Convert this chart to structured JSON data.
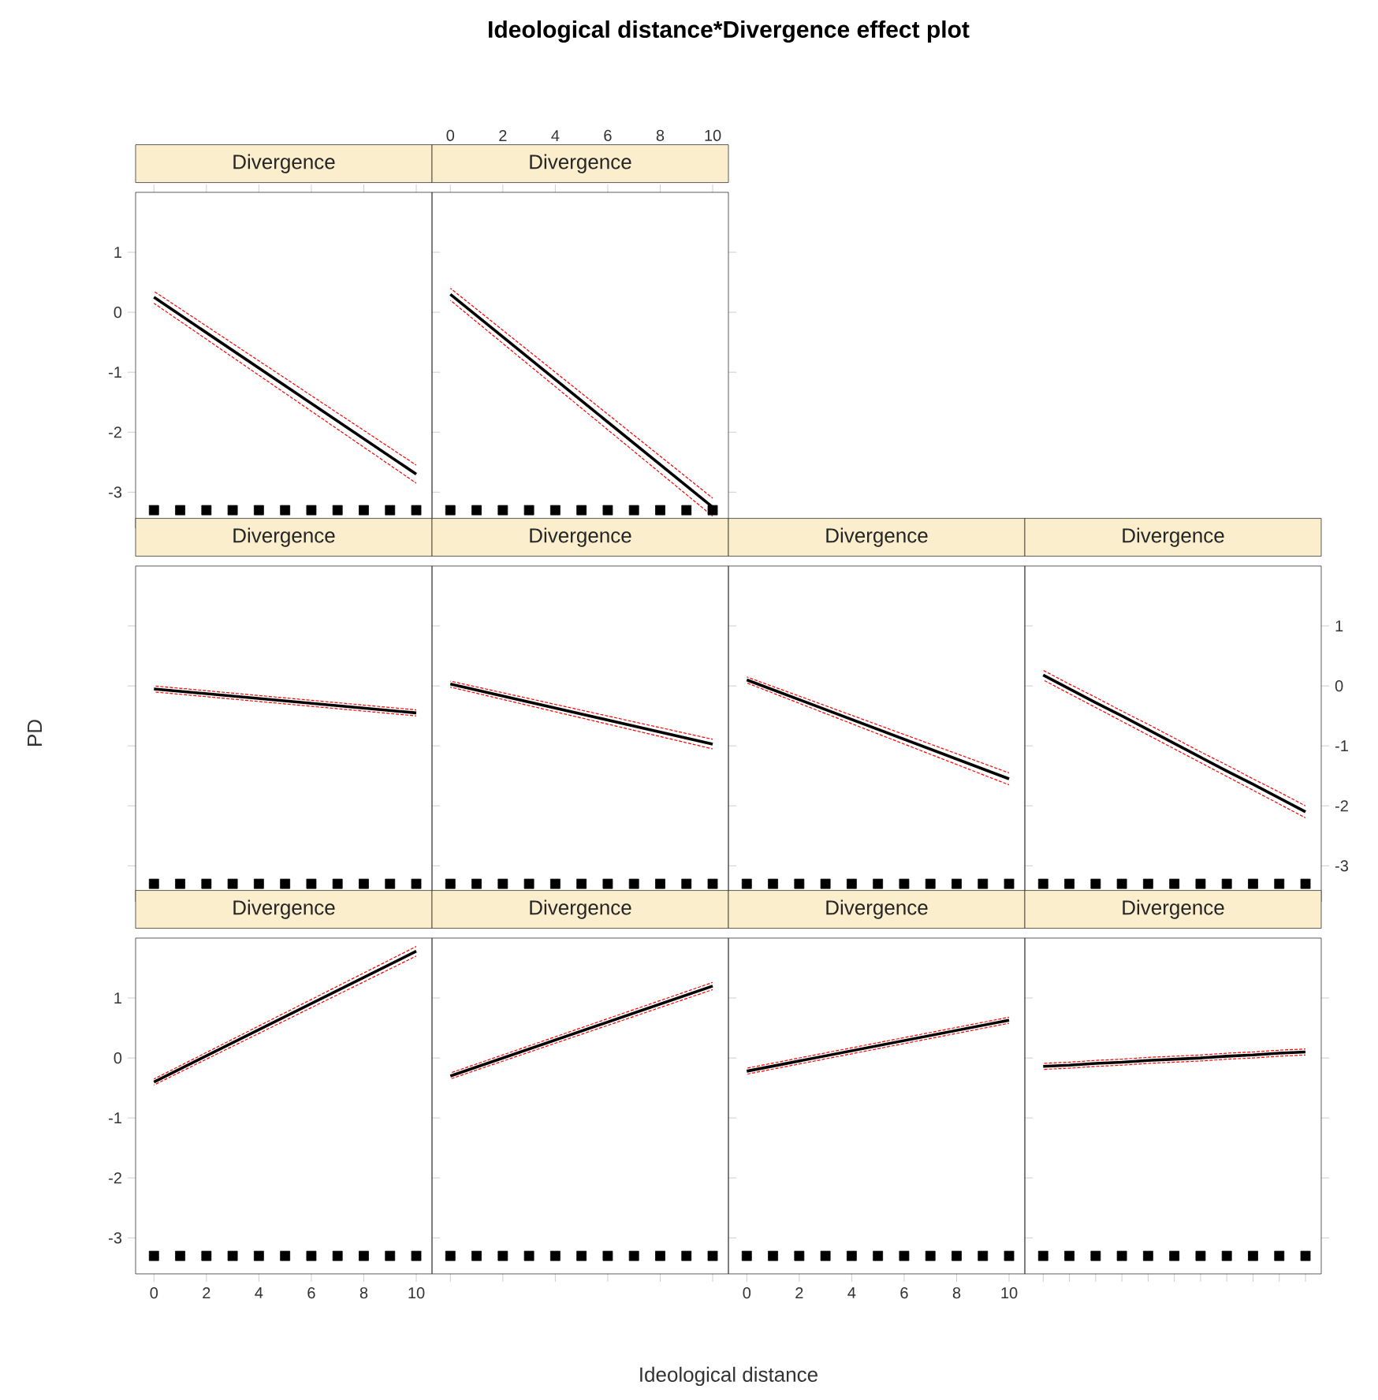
{
  "chart_data": [
    {
      "type": "line",
      "title": "Divergence",
      "xlim": [
        -0.7,
        10.6
      ],
      "ylim": [
        -3.6,
        2.0
      ],
      "xticks": [
        0,
        2,
        4,
        6,
        8,
        10
      ],
      "yticks": [
        -3,
        -2,
        -1,
        0,
        1
      ],
      "tick_labels": "y",
      "series": [
        {
          "color": "#000000",
          "line_style": "solid",
          "x": [
            0,
            10
          ],
          "values": [
            0.25,
            -2.7
          ]
        },
        {
          "color": "#ff0000",
          "line_style": "dashed",
          "x": [
            0,
            10
          ],
          "values": [
            0.15,
            -2.85
          ]
        },
        {
          "color": "#ff0000",
          "line_style": "dashed",
          "x": [
            0,
            10
          ],
          "values": [
            0.35,
            -2.55
          ]
        },
        {
          "type": "scatter",
          "marker": "square",
          "color": "#000000",
          "x": [
            0,
            1,
            2,
            3,
            4,
            5,
            6,
            7,
            8,
            9,
            10
          ],
          "values": [
            -3.3,
            -3.3,
            -3.3,
            -3.3,
            -3.3,
            -3.3,
            -3.3,
            -3.3,
            -3.3,
            -3.3,
            -3.3
          ]
        }
      ]
    },
    {
      "type": "line",
      "title": "Divergence",
      "xlim": [
        -0.7,
        10.6
      ],
      "ylim": [
        -3.6,
        2.0
      ],
      "xticks": [
        0,
        2,
        4,
        6,
        8,
        10
      ],
      "yticks": [
        -3,
        -2,
        -1,
        0,
        1
      ],
      "tick_labels": "x",
      "series": [
        {
          "color": "#000000",
          "line_style": "solid",
          "x": [
            0,
            10
          ],
          "values": [
            0.3,
            -3.25
          ]
        },
        {
          "color": "#ff0000",
          "line_style": "dashed",
          "x": [
            0,
            10
          ],
          "values": [
            0.2,
            -3.4
          ]
        },
        {
          "color": "#ff0000",
          "line_style": "dashed",
          "x": [
            0,
            10
          ],
          "values": [
            0.4,
            -3.1
          ]
        },
        {
          "type": "scatter",
          "marker": "square",
          "color": "#000000",
          "x": [
            0,
            1,
            2,
            3,
            4,
            5,
            6,
            7,
            8,
            9,
            10
          ],
          "values": [
            -3.3,
            -3.3,
            -3.3,
            -3.3,
            -3.3,
            -3.3,
            -3.3,
            -3.3,
            -3.3,
            -3.3,
            -3.3
          ]
        }
      ]
    },
    {
      "type": "line",
      "title": "Divergence",
      "xlim": [
        -0.7,
        10.6
      ],
      "ylim": [
        -3.6,
        2.0
      ],
      "xticks": [
        0,
        2,
        4,
        6,
        8,
        10
      ],
      "yticks": [
        -3,
        -2,
        -1,
        0,
        1
      ],
      "tick_labels": false,
      "series": [
        {
          "color": "#000000",
          "line_style": "solid",
          "x": [
            0,
            10
          ],
          "values": [
            -0.05,
            -0.45
          ]
        },
        {
          "color": "#ff0000",
          "line_style": "dashed",
          "x": [
            0,
            10
          ],
          "values": [
            -0.1,
            -0.5
          ]
        },
        {
          "color": "#ff0000",
          "line_style": "dashed",
          "x": [
            0,
            10
          ],
          "values": [
            0.0,
            -0.4
          ]
        },
        {
          "type": "scatter",
          "marker": "square",
          "color": "#000000",
          "x": [
            0,
            1,
            2,
            3,
            4,
            5,
            6,
            7,
            8,
            9,
            10
          ],
          "values": [
            -3.3,
            -3.3,
            -3.3,
            -3.3,
            -3.3,
            -3.3,
            -3.3,
            -3.3,
            -3.3,
            -3.3,
            -3.3
          ]
        }
      ]
    },
    {
      "type": "line",
      "title": "Divergence",
      "xlim": [
        -0.7,
        10.6
      ],
      "ylim": [
        -3.6,
        2.0
      ],
      "xticks": [
        0,
        2,
        4,
        6,
        8,
        10
      ],
      "yticks": [
        -3,
        -2,
        -1,
        0,
        1
      ],
      "tick_labels": false,
      "series": [
        {
          "color": "#000000",
          "line_style": "solid",
          "x": [
            0,
            10
          ],
          "values": [
            0.03,
            -0.97
          ]
        },
        {
          "color": "#ff0000",
          "line_style": "dashed",
          "x": [
            0,
            10
          ],
          "values": [
            -0.02,
            -1.05
          ]
        },
        {
          "color": "#ff0000",
          "line_style": "dashed",
          "x": [
            0,
            10
          ],
          "values": [
            0.08,
            -0.89
          ]
        },
        {
          "type": "scatter",
          "marker": "square",
          "color": "#000000",
          "x": [
            0,
            1,
            2,
            3,
            4,
            5,
            6,
            7,
            8,
            9,
            10
          ],
          "values": [
            -3.3,
            -3.3,
            -3.3,
            -3.3,
            -3.3,
            -3.3,
            -3.3,
            -3.3,
            -3.3,
            -3.3,
            -3.3
          ]
        }
      ]
    },
    {
      "type": "line",
      "title": "Divergence",
      "xlim": [
        -0.7,
        10.6
      ],
      "ylim": [
        -3.6,
        2.0
      ],
      "xticks": [
        0,
        2,
        4,
        6,
        8,
        10
      ],
      "yticks": [
        -3,
        -2,
        -1,
        0,
        1
      ],
      "tick_labels": false,
      "series": [
        {
          "color": "#000000",
          "line_style": "solid",
          "x": [
            0,
            10
          ],
          "values": [
            0.1,
            -1.55
          ]
        },
        {
          "color": "#ff0000",
          "line_style": "dashed",
          "x": [
            0,
            10
          ],
          "values": [
            0.05,
            -1.65
          ]
        },
        {
          "color": "#ff0000",
          "line_style": "dashed",
          "x": [
            0,
            10
          ],
          "values": [
            0.15,
            -1.45
          ]
        },
        {
          "type": "scatter",
          "marker": "square",
          "color": "#000000",
          "x": [
            0,
            1,
            2,
            3,
            4,
            5,
            6,
            7,
            8,
            9,
            10
          ],
          "values": [
            -3.3,
            -3.3,
            -3.3,
            -3.3,
            -3.3,
            -3.3,
            -3.3,
            -3.3,
            -3.3,
            -3.3,
            -3.3
          ]
        }
      ]
    },
    {
      "type": "line",
      "title": "Divergence",
      "categories": [
        null,
        null,
        null,
        null,
        null,
        null,
        null,
        null,
        null,
        null,
        null
      ],
      "ylim": [
        -3.6,
        2.0
      ],
      "yticks": [
        -3,
        -2,
        -1,
        0,
        1
      ],
      "tick_labels": "y",
      "series": [
        {
          "color": "#000000",
          "line_style": "solid",
          "values": [
            0.18,
            -0.05,
            -0.28,
            -0.5,
            -0.73,
            -0.96,
            -1.19,
            -1.42,
            -1.64,
            -1.87,
            -2.1
          ]
        },
        {
          "color": "#ff0000",
          "line_style": "dashed",
          "values": [
            0.1,
            -0.13,
            -0.36,
            -0.59,
            -0.82,
            -1.05,
            -1.28,
            -1.51,
            -1.74,
            -1.97,
            -2.2
          ]
        },
        {
          "color": "#ff0000",
          "line_style": "dashed",
          "values": [
            0.26,
            0.03,
            -0.19,
            -0.42,
            -0.64,
            -0.87,
            -1.1,
            -1.32,
            -1.55,
            -1.77,
            -2.0
          ]
        },
        {
          "type": "scatter",
          "marker": "square",
          "color": "#000000",
          "values": [
            -3.3,
            -3.3,
            -3.3,
            -3.3,
            -3.3,
            -3.3,
            -3.3,
            -3.3,
            -3.3,
            -3.3,
            -3.3
          ]
        }
      ]
    },
    {
      "type": "line",
      "title": "Divergence",
      "xlim": [
        -0.7,
        10.6
      ],
      "ylim": [
        -3.6,
        2.0
      ],
      "xticks": [
        0,
        2,
        4,
        6,
        8,
        10
      ],
      "yticks": [
        -3,
        -2,
        -1,
        0,
        1
      ],
      "series": [
        {
          "color": "#000000",
          "line_style": "solid",
          "x": [
            0,
            10
          ],
          "values": [
            -0.4,
            1.78
          ]
        },
        {
          "color": "#ff0000",
          "line_style": "dashed",
          "x": [
            0,
            10
          ],
          "values": [
            -0.45,
            1.7
          ]
        },
        {
          "color": "#ff0000",
          "line_style": "dashed",
          "x": [
            0,
            10
          ],
          "values": [
            -0.35,
            1.86
          ]
        },
        {
          "type": "scatter",
          "marker": "square",
          "color": "#000000",
          "x": [
            0,
            1,
            2,
            3,
            4,
            5,
            6,
            7,
            8,
            9,
            10
          ],
          "values": [
            -3.3,
            -3.3,
            -3.3,
            -3.3,
            -3.3,
            -3.3,
            -3.3,
            -3.3,
            -3.3,
            -3.3,
            -3.3
          ]
        }
      ]
    },
    {
      "type": "line",
      "title": "Divergence",
      "xlim": [
        -0.7,
        10.6
      ],
      "ylim": [
        -3.6,
        2.0
      ],
      "xticks": [
        0,
        2,
        4,
        6,
        8,
        10
      ],
      "yticks": [
        -3,
        -2,
        -1,
        0,
        1
      ],
      "tick_labels": false,
      "series": [
        {
          "color": "#000000",
          "line_style": "solid",
          "x": [
            0,
            10
          ],
          "values": [
            -0.3,
            1.2
          ]
        },
        {
          "color": "#ff0000",
          "line_style": "dashed",
          "x": [
            0,
            10
          ],
          "values": [
            -0.35,
            1.14
          ]
        },
        {
          "color": "#ff0000",
          "line_style": "dashed",
          "x": [
            0,
            10
          ],
          "values": [
            -0.25,
            1.26
          ]
        },
        {
          "type": "scatter",
          "marker": "square",
          "color": "#000000",
          "x": [
            0,
            1,
            2,
            3,
            4,
            5,
            6,
            7,
            8,
            9,
            10
          ],
          "values": [
            -3.3,
            -3.3,
            -3.3,
            -3.3,
            -3.3,
            -3.3,
            -3.3,
            -3.3,
            -3.3,
            -3.3,
            -3.3
          ]
        }
      ]
    },
    {
      "type": "line",
      "title": "Divergence",
      "xlim": [
        -0.7,
        10.6
      ],
      "ylim": [
        -3.6,
        2.0
      ],
      "xticks": [
        0,
        2,
        4,
        6,
        8,
        10
      ],
      "yticks": [
        -3,
        -2,
        -1,
        0,
        1
      ],
      "tick_labels": "x",
      "series": [
        {
          "color": "#000000",
          "line_style": "solid",
          "x": [
            0,
            10
          ],
          "values": [
            -0.22,
            0.63
          ]
        },
        {
          "color": "#ff0000",
          "line_style": "dashed",
          "x": [
            0,
            10
          ],
          "values": [
            -0.27,
            0.58
          ]
        },
        {
          "color": "#ff0000",
          "line_style": "dashed",
          "x": [
            0,
            10
          ],
          "values": [
            -0.17,
            0.68
          ]
        },
        {
          "type": "scatter",
          "marker": "square",
          "color": "#000000",
          "x": [
            0,
            1,
            2,
            3,
            4,
            5,
            6,
            7,
            8,
            9,
            10
          ],
          "values": [
            -3.3,
            -3.3,
            -3.3,
            -3.3,
            -3.3,
            -3.3,
            -3.3,
            -3.3,
            -3.3,
            -3.3,
            -3.3
          ]
        }
      ]
    },
    {
      "type": "line",
      "title": "Divergence",
      "categories": [
        null,
        null,
        null,
        null,
        null,
        null,
        null,
        null,
        null,
        null,
        null
      ],
      "ylim": [
        -3.6,
        2.0
      ],
      "yticks": [
        -3,
        -2,
        -1,
        0,
        1
      ],
      "tick_labels": false,
      "series": [
        {
          "color": "#000000",
          "line_style": "solid",
          "values": [
            -0.14,
            -0.12,
            -0.09,
            -0.07,
            -0.04,
            -0.02,
            0.0,
            0.03,
            0.05,
            0.08,
            0.1
          ]
        },
        {
          "color": "#ff0000",
          "line_style": "dashed",
          "values": [
            -0.19,
            -0.17,
            -0.14,
            -0.12,
            -0.09,
            -0.07,
            -0.05,
            -0.02,
            0.0,
            0.03,
            0.05
          ]
        },
        {
          "color": "#ff0000",
          "line_style": "dashed",
          "values": [
            -0.09,
            -0.07,
            -0.04,
            -0.02,
            0.01,
            0.03,
            0.05,
            0.08,
            0.1,
            0.13,
            0.15
          ]
        },
        {
          "type": "scatter",
          "marker": "square",
          "color": "#000000",
          "values": [
            -3.3,
            -3.3,
            -3.3,
            -3.3,
            -3.3,
            -3.3,
            -3.3,
            -3.3,
            -3.3,
            -3.3,
            -3.3
          ]
        }
      ]
    },
    {
      "type": "other",
      "title": "Ideological distance*Divergence effect plot",
      "xlabel": "Ideological distance",
      "ylabel": "PD"
    }
  ]
}
